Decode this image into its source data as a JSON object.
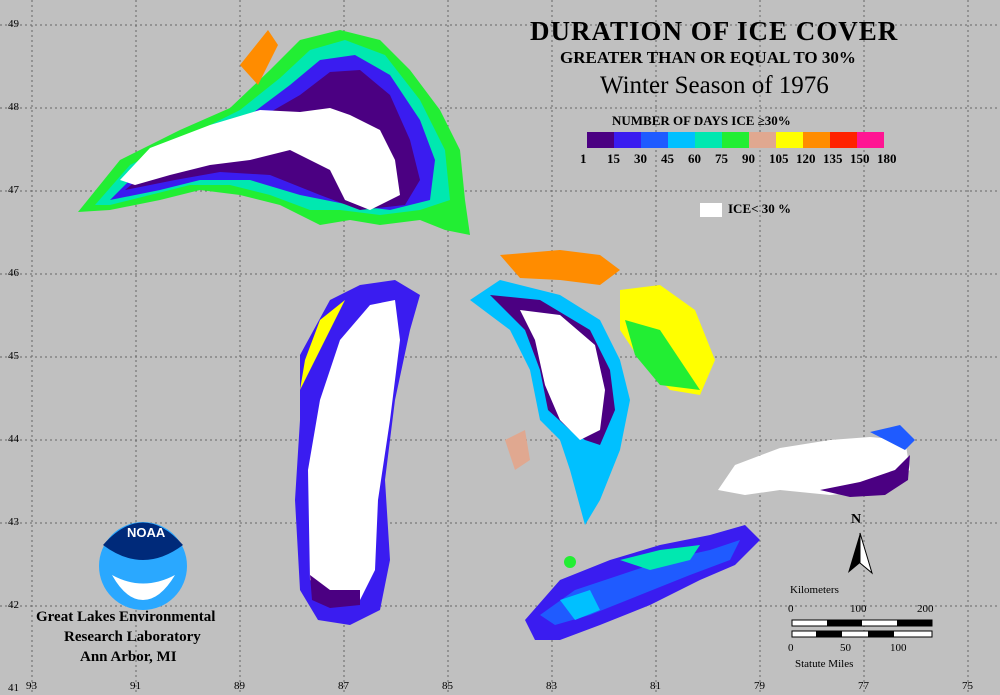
{
  "title": "DURATION OF ICE COVER",
  "subtitle": "GREATER THAN OR EQUAL TO 30%",
  "season": "Winter Season of 1976",
  "legend": {
    "title": "NUMBER OF DAYS ICE ≥30%",
    "colors": [
      "#4b0082",
      "#3a1cf0",
      "#1f5bff",
      "#00c0ff",
      "#00e8b0",
      "#22ee33",
      "#e0a890",
      "#ffff00",
      "#ff8c00",
      "#ff2200",
      "#ff1493"
    ],
    "ticks": [
      "1",
      "15",
      "30",
      "45",
      "60",
      "75",
      "90",
      "105",
      "120",
      "135",
      "150",
      "180"
    ],
    "ice_label": "ICE< 30 %"
  },
  "lat_labels": [
    "49",
    "48",
    "47",
    "46",
    "45",
    "44",
    "43",
    "42",
    "41"
  ],
  "lon_labels": [
    "93",
    "91",
    "89",
    "87",
    "85",
    "83",
    "81",
    "79",
    "77",
    "75"
  ],
  "org": {
    "line1": "Great Lakes Environmental",
    "line2": "Research Laboratory",
    "line3": "Ann Arbor, MI",
    "logo_text": "NOAA"
  },
  "scale": {
    "km_label": "Kilometers",
    "km_ticks": [
      "0",
      "100",
      "200"
    ],
    "mi_ticks": [
      "0",
      "50",
      "100"
    ],
    "mi_label": "Statute Miles"
  },
  "north_label": "N"
}
